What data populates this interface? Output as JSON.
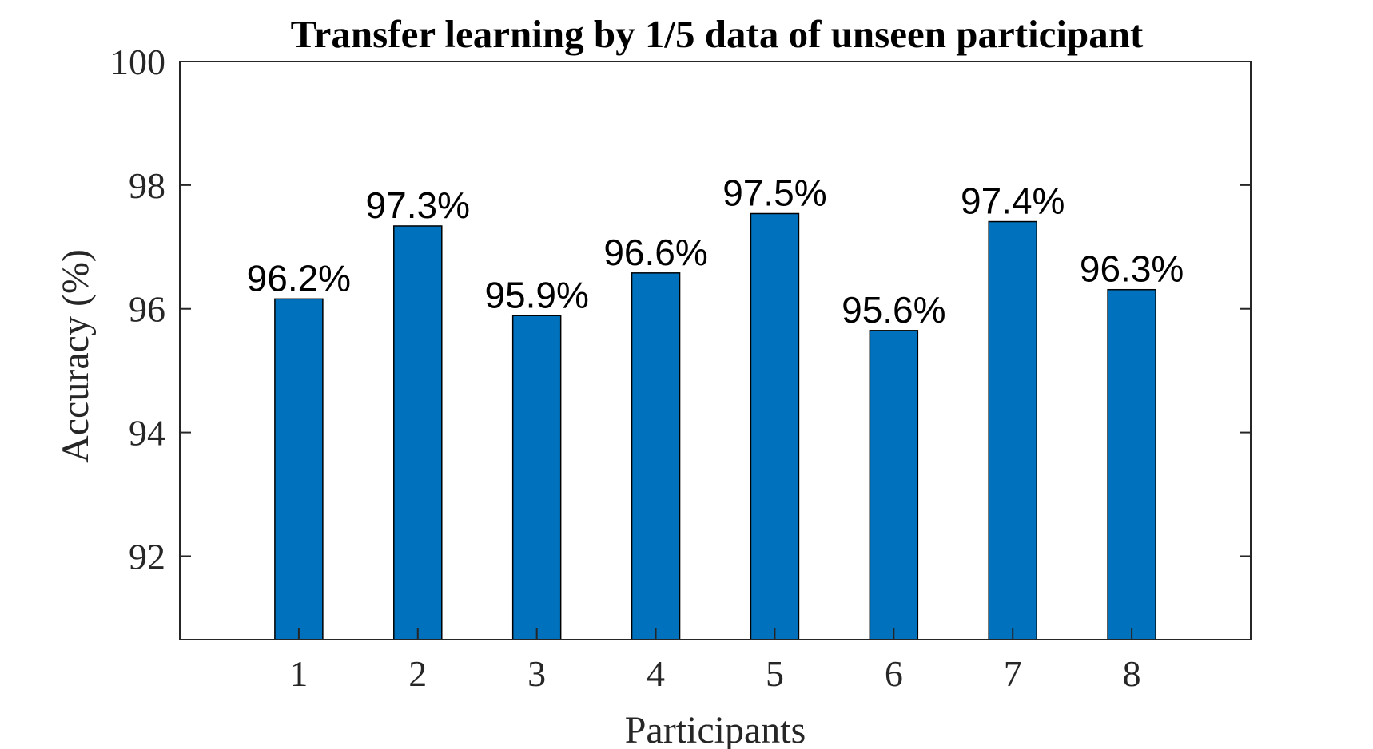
{
  "chart_data": {
    "type": "bar",
    "title": "Transfer learning by 1/5 data of unseen participant",
    "xlabel": "Participants",
    "ylabel": "Accuracy (%)",
    "categories": [
      "1",
      "2",
      "3",
      "4",
      "5",
      "6",
      "7",
      "8"
    ],
    "values": [
      96.16,
      97.34,
      95.89,
      96.58,
      97.54,
      95.65,
      97.41,
      96.31
    ],
    "data_labels": [
      "96.2%",
      "97.3%",
      "95.9%",
      "96.6%",
      "97.5%",
      "95.6%",
      "97.4%",
      "96.3%"
    ],
    "ylim": [
      90.65,
      100
    ],
    "xlim": [
      0,
      9
    ],
    "yticks": [
      92,
      94,
      96,
      98,
      100
    ],
    "ytick_labels": [
      "92",
      "94",
      "96",
      "98",
      "100"
    ],
    "grid": false,
    "legend": false
  },
  "colors": {
    "bar_fill": "#0072BD",
    "bar_edge": "#000000",
    "axis": "#262626",
    "background": "#ffffff"
  }
}
